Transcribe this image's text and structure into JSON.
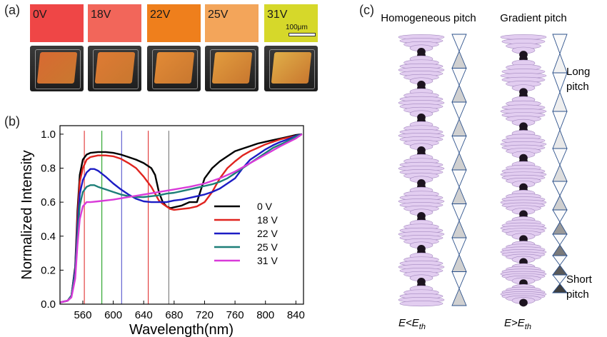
{
  "panels": {
    "a": "(a)",
    "b": "(b)",
    "c": "(c)"
  },
  "panel_a": {
    "swatches": [
      {
        "label": "0V",
        "color": "#ef4646",
        "film": "#d86a32"
      },
      {
        "label": "18V",
        "color": "#f2665a",
        "film": "#de7a34"
      },
      {
        "label": "22V",
        "color": "#ef7f1c",
        "film": "#e28a36"
      },
      {
        "label": "25V",
        "color": "#f3a55a",
        "film": "#e29c3e"
      },
      {
        "label": "31V",
        "color": "#d6d82a",
        "film": "#e0ae48"
      }
    ],
    "scale_bar": "100μm"
  },
  "chart_data": {
    "type": "line",
    "xlabel": "Wavelength(nm)",
    "ylabel": "Normalized Intensity",
    "xlim": [
      530,
      850
    ],
    "ylim": [
      0.0,
      1.05
    ],
    "xticks": [
      560,
      600,
      640,
      680,
      720,
      760,
      800,
      840
    ],
    "yticks": [
      0.0,
      0.2,
      0.4,
      0.6,
      0.8,
      1.0
    ],
    "legend_position": "lower-right",
    "series": [
      {
        "name": "0 V",
        "color": "#000000",
        "x": [
          530,
          540,
          545,
          550,
          553,
          556,
          560,
          565,
          570,
          580,
          590,
          600,
          610,
          620,
          630,
          640,
          650,
          655,
          660,
          665,
          670,
          675,
          680,
          690,
          700,
          710,
          715,
          720,
          730,
          740,
          750,
          760,
          770,
          780,
          790,
          800,
          810,
          820,
          830,
          840,
          848
        ],
        "y": [
          0.01,
          0.02,
          0.05,
          0.22,
          0.55,
          0.76,
          0.85,
          0.88,
          0.89,
          0.895,
          0.895,
          0.89,
          0.88,
          0.865,
          0.85,
          0.83,
          0.8,
          0.76,
          0.66,
          0.6,
          0.575,
          0.565,
          0.57,
          0.58,
          0.6,
          0.6,
          0.67,
          0.74,
          0.8,
          0.84,
          0.87,
          0.9,
          0.915,
          0.93,
          0.945,
          0.955,
          0.965,
          0.975,
          0.985,
          0.995,
          1.0
        ]
      },
      {
        "name": "18 V",
        "color": "#e0241f",
        "x": [
          530,
          540,
          545,
          550,
          553,
          556,
          560,
          565,
          570,
          580,
          590,
          600,
          610,
          620,
          630,
          640,
          645,
          650,
          655,
          660,
          665,
          670,
          675,
          680,
          690,
          700,
          710,
          720,
          730,
          740,
          750,
          760,
          770,
          780,
          790,
          800,
          810,
          820,
          830,
          840,
          848
        ],
        "y": [
          0.01,
          0.02,
          0.05,
          0.2,
          0.5,
          0.72,
          0.8,
          0.85,
          0.865,
          0.875,
          0.875,
          0.87,
          0.855,
          0.83,
          0.8,
          0.75,
          0.72,
          0.69,
          0.65,
          0.61,
          0.59,
          0.575,
          0.56,
          0.555,
          0.56,
          0.565,
          0.575,
          0.6,
          0.66,
          0.74,
          0.8,
          0.84,
          0.875,
          0.9,
          0.92,
          0.94,
          0.955,
          0.97,
          0.98,
          0.99,
          1.0
        ]
      },
      {
        "name": "22 V",
        "color": "#1c1cc4",
        "x": [
          530,
          540,
          545,
          550,
          553,
          556,
          560,
          565,
          570,
          575,
          580,
          590,
          600,
          610,
          620,
          630,
          640,
          650,
          660,
          670,
          680,
          690,
          700,
          710,
          720,
          730,
          740,
          750,
          760,
          770,
          780,
          790,
          800,
          810,
          820,
          830,
          840,
          848
        ],
        "y": [
          0.01,
          0.02,
          0.05,
          0.2,
          0.45,
          0.65,
          0.73,
          0.775,
          0.795,
          0.795,
          0.785,
          0.75,
          0.71,
          0.675,
          0.645,
          0.62,
          0.605,
          0.6,
          0.6,
          0.6,
          0.61,
          0.615,
          0.625,
          0.635,
          0.645,
          0.66,
          0.68,
          0.71,
          0.74,
          0.8,
          0.85,
          0.88,
          0.91,
          0.935,
          0.955,
          0.97,
          0.99,
          1.0
        ]
      },
      {
        "name": "25 V",
        "color": "#1d7f78",
        "x": [
          530,
          540,
          545,
          550,
          553,
          556,
          560,
          565,
          570,
          575,
          580,
          590,
          600,
          610,
          620,
          630,
          640,
          650,
          660,
          670,
          680,
          690,
          700,
          710,
          720,
          730,
          740,
          750,
          760,
          770,
          780,
          790,
          800,
          810,
          820,
          830,
          840,
          848
        ],
        "y": [
          0.01,
          0.02,
          0.05,
          0.18,
          0.4,
          0.58,
          0.66,
          0.69,
          0.7,
          0.7,
          0.69,
          0.675,
          0.66,
          0.645,
          0.635,
          0.63,
          0.63,
          0.635,
          0.64,
          0.65,
          0.655,
          0.665,
          0.675,
          0.685,
          0.695,
          0.705,
          0.72,
          0.74,
          0.77,
          0.8,
          0.83,
          0.86,
          0.89,
          0.92,
          0.94,
          0.96,
          0.985,
          1.0
        ]
      },
      {
        "name": "31 V",
        "color": "#d93ad9",
        "x": [
          530,
          540,
          545,
          550,
          553,
          556,
          560,
          565,
          570,
          580,
          590,
          600,
          620,
          640,
          660,
          680,
          700,
          720,
          740,
          760,
          780,
          800,
          820,
          840,
          848
        ],
        "y": [
          0.01,
          0.02,
          0.04,
          0.15,
          0.35,
          0.5,
          0.575,
          0.6,
          0.6,
          0.605,
          0.61,
          0.615,
          0.63,
          0.645,
          0.66,
          0.675,
          0.69,
          0.71,
          0.74,
          0.78,
          0.83,
          0.88,
          0.93,
          0.975,
          1.0
        ]
      }
    ],
    "reference_lines": [
      {
        "x": 562,
        "color": "#e03030"
      },
      {
        "x": 585,
        "color": "#22a022"
      },
      {
        "x": 611,
        "color": "#5555cc"
      },
      {
        "x": 646,
        "color": "#e03030"
      },
      {
        "x": 673,
        "color": "#777777"
      }
    ]
  },
  "panel_c": {
    "homogeneous_title": "Homogeneous pitch",
    "gradient_title": "Gradient pitch",
    "long_pitch": "Long\npitch",
    "short_pitch": "Short\npitch",
    "cond_left_main": "E<E",
    "cond_left_sub": "th",
    "cond_right_main": "E>E",
    "cond_right_sub": "th",
    "homogeneous_cones": 8,
    "gradient_cone_heights": [
      54,
      54,
      52,
      46,
      40,
      34,
      30,
      27,
      25
    ],
    "gradient_cone_shades": [
      "#f2f2f2",
      "#eeeeee",
      "#e8e8e8",
      "#dddddd",
      "#cfcfcf",
      "#9a9a9a",
      "#7a7a7a",
      "#5a5a5a",
      "#404040"
    ],
    "ellipse_fill": "#e2cdf0",
    "ellipse_stroke": "#a58ac0"
  }
}
